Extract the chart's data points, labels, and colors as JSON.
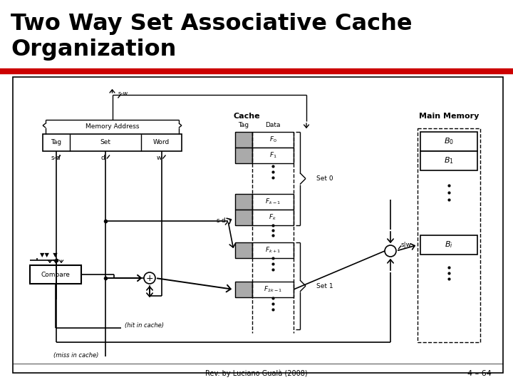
{
  "title_line1": "Two Way Set Associative Cache",
  "title_line2": "Organization",
  "title_fontsize": 22,
  "title_color": "#000000",
  "bg_color": "#ffffff",
  "red_line_color": "#cc0000",
  "footer_left": "Rev. by Luciano Gualà (2008)",
  "footer_right": "4 – 64",
  "box_outline": "#000000",
  "gray_fill": "#aaaaaa",
  "dashed_line": "#000000"
}
